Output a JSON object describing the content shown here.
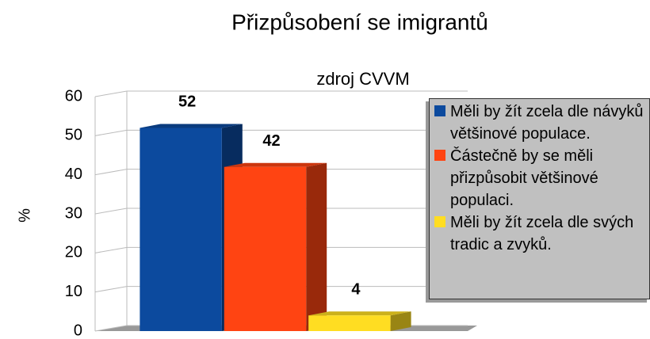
{
  "chart_data": {
    "type": "bar3d",
    "title": "Přizpůsobení se imigrantů",
    "subtitle": "zdroj CVVM",
    "y_label": "%",
    "categories": [
      null
    ],
    "series": [
      {
        "name": "Měli by žít zcela dle návyků většinové populace.",
        "color": "#0c4a9e",
        "values": [
          52
        ]
      },
      {
        "name": "Částečně by se měli přizpůsobit většinové populaci.",
        "color": "#ff4412",
        "values": [
          42
        ]
      },
      {
        "name": "Měli by žít zcela dle svých tradic a zvyků.",
        "color": "#ffdd22",
        "values": [
          4
        ]
      }
    ],
    "ylim": [
      0,
      60
    ],
    "yticks": [
      0,
      10,
      20,
      30,
      40,
      50,
      60
    ],
    "grid": true,
    "legend": "right"
  }
}
